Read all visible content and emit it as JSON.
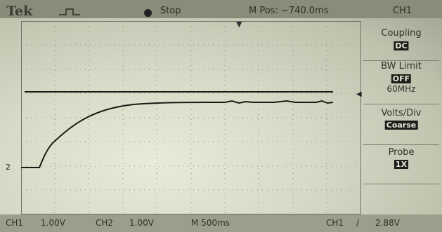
{
  "header": {
    "brand": "Tek",
    "run_state": "Stop",
    "position": "M Pos: −740.0ms",
    "menu_title": "CH1"
  },
  "menu": {
    "coupling": {
      "label": "Coupling",
      "value": "DC"
    },
    "bw_limit": {
      "label": "BW Limit",
      "value": "OFF",
      "sub": "60MHz"
    },
    "volts_div": {
      "label": "Volts/Div",
      "value": "Coarse"
    },
    "probe": {
      "label": "Probe",
      "value": "1X"
    }
  },
  "markers": {
    "channel": "2",
    "trigger_level_arrow": "◀",
    "trigger_position": "▼"
  },
  "status": {
    "ch1": "CH1",
    "ch1_scale": "1.00V",
    "ch2": "CH2",
    "ch2_scale": "1.00V",
    "timebase": "M 500ms",
    "trigger": "CH1",
    "trigger_slope": "/",
    "trigger_level": "2.88V"
  },
  "colors": {
    "screen": "#d7d9c6",
    "trace": "#1a1a14",
    "highlight": "#1d1e19"
  }
}
